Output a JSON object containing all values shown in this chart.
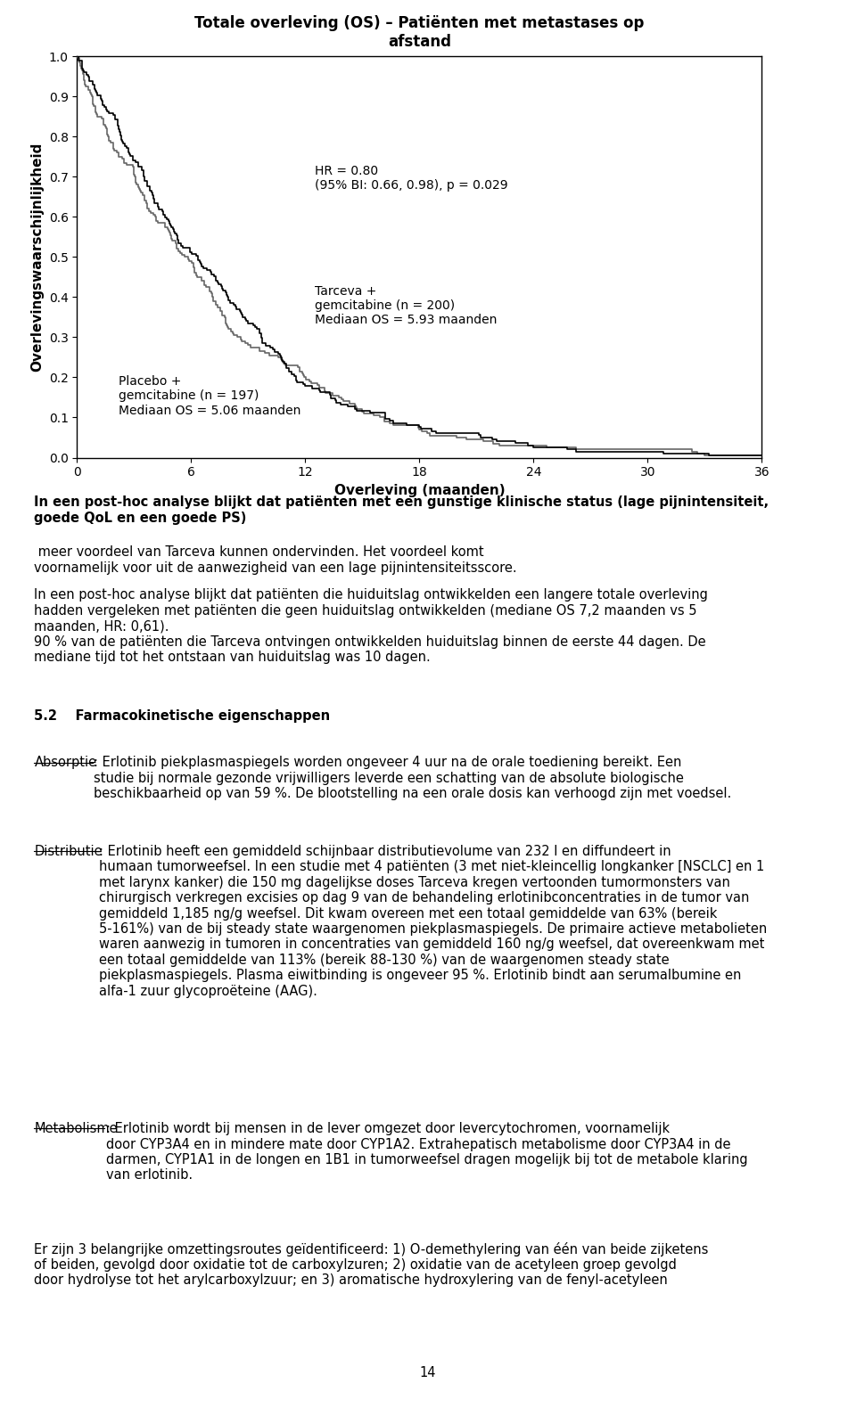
{
  "title_line1": "Totale overleving (OS) – Patiënten met metastases op",
  "title_line2": "afstand",
  "ylabel": "Overlevingswaarschijnlijkheid",
  "xlabel": "Overleving (maanden)",
  "xlim": [
    0,
    36
  ],
  "ylim": [
    0.0,
    1.0
  ],
  "xticks": [
    0,
    6,
    12,
    18,
    24,
    30,
    36
  ],
  "yticks": [
    0.0,
    0.1,
    0.2,
    0.3,
    0.4,
    0.5,
    0.6,
    0.7,
    0.8,
    0.9,
    1.0
  ],
  "hr_text_line1": "HR = 0.80",
  "hr_text_line2": "(95% BI: 0.66, 0.98), p = 0.029",
  "tarceva_label": "Tarceva +\ngemcitabine (n = 200)\nMediaan OS = 5.93 maanden",
  "placebo_label": "Placebo +\ngemcitabine (n = 197)\nMediaan OS = 5.06 maanden",
  "tarceva_color": "#666666",
  "placebo_color": "#000000",
  "background_color": "#ffffff",
  "page_number": "14"
}
